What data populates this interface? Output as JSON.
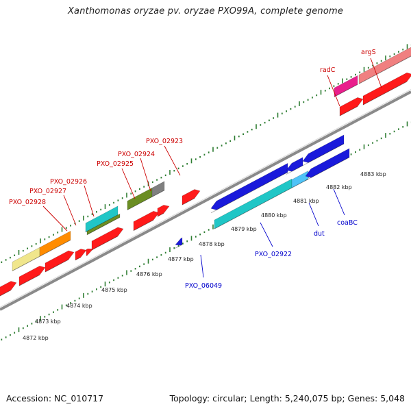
{
  "title": "Xanthomonas oryzae pv. oryzae PXO99A, complete genome",
  "footer": {
    "accession": "Accession: NC_010717",
    "summary": "Topology: circular; Length: 5,240,075 bp; Genes: 5,048"
  },
  "colors": {
    "forward_label": "#cc0000",
    "reverse_label": "#0000cc",
    "tick": "#2e7d32",
    "backbone": "#888888"
  },
  "scale_ticks": [
    {
      "label": "4872 kbp"
    },
    {
      "label": "4873 kbp"
    },
    {
      "label": "4874 kbp"
    },
    {
      "label": "4875 kbp"
    },
    {
      "label": "4876 kbp"
    },
    {
      "label": "4877 kbp"
    },
    {
      "label": "4878 kbp"
    },
    {
      "label": "4879 kbp"
    },
    {
      "label": "4880 kbp"
    },
    {
      "label": "4881 kbp"
    },
    {
      "label": "4882 kbp"
    },
    {
      "label": "4883 kbp"
    }
  ],
  "gene_labels": [
    {
      "text": "PXO_02928",
      "strand": "forward"
    },
    {
      "text": "PXO_02927",
      "strand": "forward"
    },
    {
      "text": "PXO_02926",
      "strand": "forward"
    },
    {
      "text": "PXO_02925",
      "strand": "forward"
    },
    {
      "text": "PXO_02924",
      "strand": "forward"
    },
    {
      "text": "PXO_02923",
      "strand": "forward"
    },
    {
      "text": "radC",
      "strand": "forward"
    },
    {
      "text": "argS",
      "strand": "forward"
    },
    {
      "text": "PXO_06049",
      "strand": "reverse"
    },
    {
      "text": "PXO_02922",
      "strand": "reverse"
    },
    {
      "text": "dut",
      "strand": "reverse"
    },
    {
      "text": "coaBC",
      "strand": "reverse"
    }
  ]
}
